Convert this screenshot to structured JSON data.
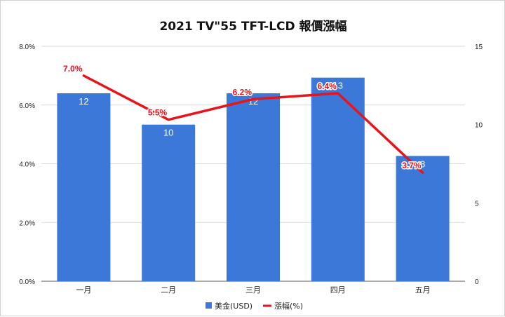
{
  "chart_data": {
    "type": "bar",
    "title": "2021 TV\"55 TFT-LCD 報價漲幅",
    "categories": [
      "一月",
      "二月",
      "三月",
      "四月",
      "五月"
    ],
    "series": [
      {
        "name": "美金(USD)",
        "type": "bar",
        "axis": "right",
        "color": "#3c78d8",
        "values": [
          12,
          10,
          12,
          13,
          8
        ],
        "value_labels": [
          "12",
          "10",
          "12",
          "13",
          "8"
        ]
      },
      {
        "name": "漲幅(%)",
        "type": "line",
        "axis": "left",
        "color": "#e8141c",
        "values": [
          7.0,
          5.5,
          6.2,
          6.4,
          3.7
        ],
        "value_labels": [
          "7.0%",
          "5.5%",
          "6.2%",
          "6.4%",
          "3.7%"
        ]
      }
    ],
    "y_left": {
      "min": 0,
      "max": 8,
      "ticks": [
        "0.0%",
        "2.0%",
        "4.0%",
        "6.0%",
        "8.0%"
      ]
    },
    "y_right": {
      "min": 0,
      "max": 15,
      "ticks": [
        "0",
        "5",
        "10",
        "15"
      ]
    },
    "grid": true,
    "legend": "bottom",
    "grid_color": "#d9d9d9"
  }
}
